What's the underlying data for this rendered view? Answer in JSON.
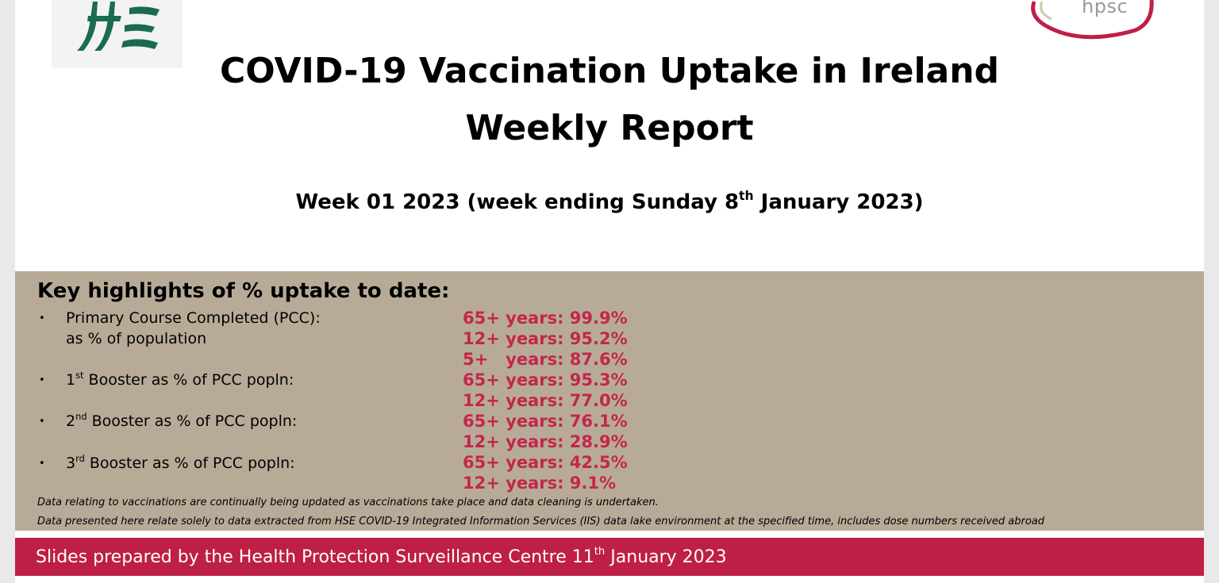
{
  "header": {
    "title_line1": "COVID-19 Vaccination Uptake in Ireland",
    "title_line2": "Weekly Report",
    "subtitle_pre": "Week 01 2023 (week ending Sunday 8",
    "subtitle_sup": "th",
    "subtitle_post": " January 2023)"
  },
  "logos": {
    "hpsc_text": "hpsc",
    "hse_color": "#1a6b52",
    "hpsc_color": "#c01e46"
  },
  "highlights": {
    "heading": "Key highlights of % uptake to date:",
    "bullet_glyph": "•",
    "pcc_label": "Primary Course Completed (PCC):",
    "pcc_cont": "as % of population",
    "pcc_values": [
      "65+ years: 99.9%",
      "12+ years: 95.2%",
      "5+   years: 87.6%"
    ],
    "b1_num": "1",
    "b1_sup": "st",
    "b1_rest": " Booster as % of PCC popln:",
    "b1_values": [
      "65+ years: 95.3%",
      "12+ years: 77.0%"
    ],
    "b2_num": "2",
    "b2_sup": "nd",
    "b2_rest": " Booster as % of PCC popln:",
    "b2_values": [
      "65+ years: 76.1%",
      "12+ years: 28.9%"
    ],
    "b3_num": "3",
    "b3_sup": "rd",
    "b3_rest": " Booster as % of PCC popln:",
    "b3_values": [
      "65+ years: 42.5%",
      "12+ years: 9.1%"
    ],
    "note1": "Data relating to vaccinations are continually being updated as vaccinations take place and data cleaning is undertaken.",
    "note2": "Data presented here relate solely to data extracted from HSE COVID-19 Integrated Information Services (IIS) data lake environment at the specified time, includes dose numbers received abroad"
  },
  "footer": {
    "text_pre": "Slides prepared by the Health Protection Surveillance Centre 11",
    "text_sup": "th",
    "text_post": " January 2023"
  },
  "colors": {
    "panel_bg": "#b7ab98",
    "value_red": "#c4264b",
    "footer_bg": "#be1f44"
  }
}
